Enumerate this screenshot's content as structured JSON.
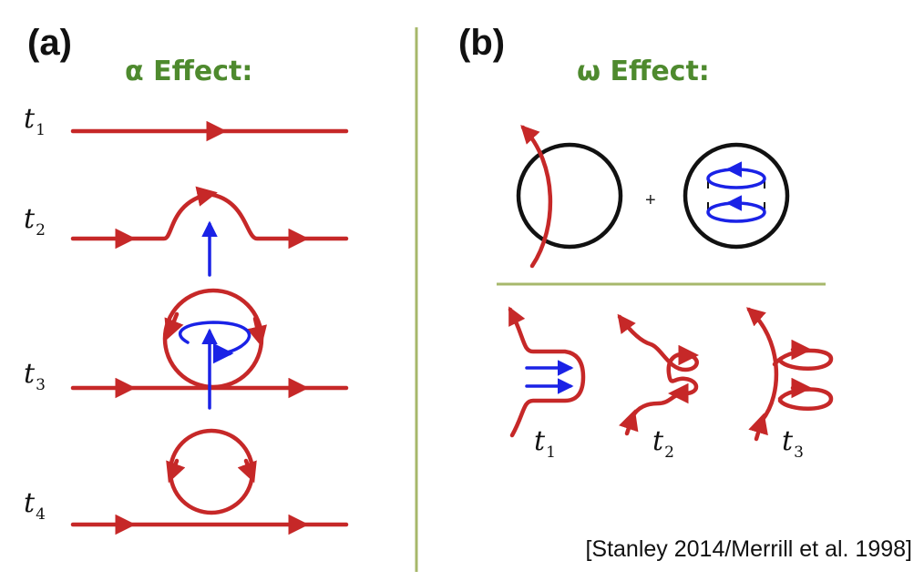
{
  "colors": {
    "red": "#c62828",
    "blue": "#1a22e6",
    "green": "#4e8a2e",
    "divider": "#a7b86b",
    "black": "#111111"
  },
  "panel_a": {
    "letter": "(a)",
    "title_symbol": "α",
    "title_text": "Effect:",
    "stages": [
      {
        "t": "t",
        "sub": "1"
      },
      {
        "t": "t",
        "sub": "2"
      },
      {
        "t": "t",
        "sub": "3"
      },
      {
        "t": "t",
        "sub": "4"
      }
    ]
  },
  "panel_b": {
    "letter": "(b)",
    "title_symbol": "ω",
    "title_text": "Effect:",
    "plus": "+",
    "stages": [
      {
        "t": "t",
        "sub": "1"
      },
      {
        "t": "t",
        "sub": "2"
      },
      {
        "t": "t",
        "sub": "3"
      }
    ]
  },
  "citation": "[Stanley 2014/Merrill et al. 1998]"
}
